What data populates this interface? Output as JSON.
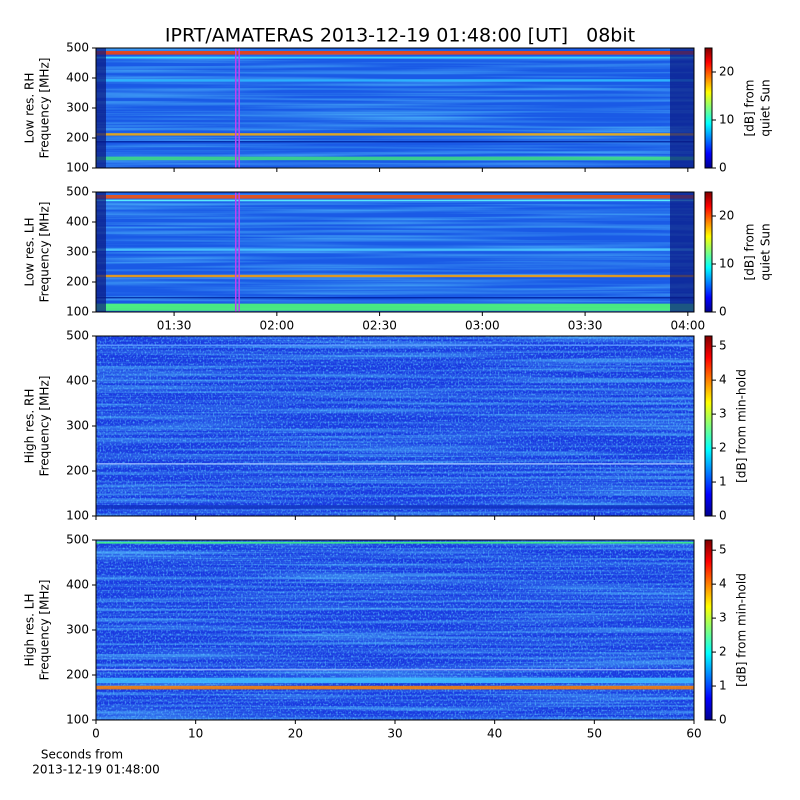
{
  "chart_data": [
    {
      "type": "heatmap",
      "title": "IPRT/AMATERAS 2013-12-19 01:48:00 [UT]   08bit",
      "ylabel": [
        "Low res. RH",
        "Frequency [MHz]"
      ],
      "ylim": [
        100,
        500
      ],
      "yticks": [
        100,
        200,
        300,
        400,
        500
      ],
      "xlim": [
        67.2,
        241.8
      ],
      "marker_lines": [
        108,
        109
      ],
      "marker_color": "#c040f0",
      "colorbar": {
        "label": [
          "[dB] from",
          "quiet Sun"
        ],
        "lim": [
          0,
          25
        ],
        "ticks": [
          0,
          10,
          20
        ]
      }
    },
    {
      "type": "heatmap",
      "ylabel": [
        "Low res. LH",
        "Frequency [MHz]"
      ],
      "ylim": [
        100,
        500
      ],
      "yticks": [
        100,
        200,
        300,
        400,
        500
      ],
      "xlim": [
        67.2,
        241.8
      ],
      "xticks": [
        {
          "value": 90,
          "label": "01:30"
        },
        {
          "value": 120,
          "label": "02:00"
        },
        {
          "value": 150,
          "label": "02:30"
        },
        {
          "value": 180,
          "label": "03:00"
        },
        {
          "value": 210,
          "label": "03:30"
        },
        {
          "value": 240,
          "label": "04:00"
        }
      ],
      "marker_lines": [
        108,
        109
      ],
      "marker_color": "#c040f0",
      "colorbar": {
        "label": [
          "[dB] from",
          "quiet Sun"
        ],
        "lim": [
          0,
          25
        ],
        "ticks": [
          0,
          10,
          20
        ]
      }
    },
    {
      "type": "heatmap",
      "ylabel": [
        "High res. RH",
        "Frequency [MHz]"
      ],
      "ylim": [
        100,
        500
      ],
      "yticks": [
        100,
        200,
        300,
        400,
        500
      ],
      "xlim": [
        0,
        60
      ],
      "colorbar": {
        "label": [
          "[dB] from min-hold"
        ],
        "lim": [
          0,
          5.3
        ],
        "ticks": [
          0,
          1,
          2,
          3,
          4,
          5
        ]
      }
    },
    {
      "type": "heatmap",
      "ylabel": [
        "High res. LH",
        "Frequency [MHz]"
      ],
      "ylim": [
        100,
        500
      ],
      "yticks": [
        100,
        200,
        300,
        400,
        500
      ],
      "xlim": [
        0,
        60
      ],
      "xticks": [
        0,
        10,
        20,
        30,
        40,
        50,
        60
      ],
      "xlabel": [
        "Seconds from",
        "2013-12-19 01:48:00"
      ],
      "colorbar": {
        "label": [
          "[dB] from min-hold"
        ],
        "lim": [
          0,
          5.3
        ],
        "ticks": [
          0,
          1,
          2,
          3,
          4,
          5
        ]
      }
    }
  ]
}
